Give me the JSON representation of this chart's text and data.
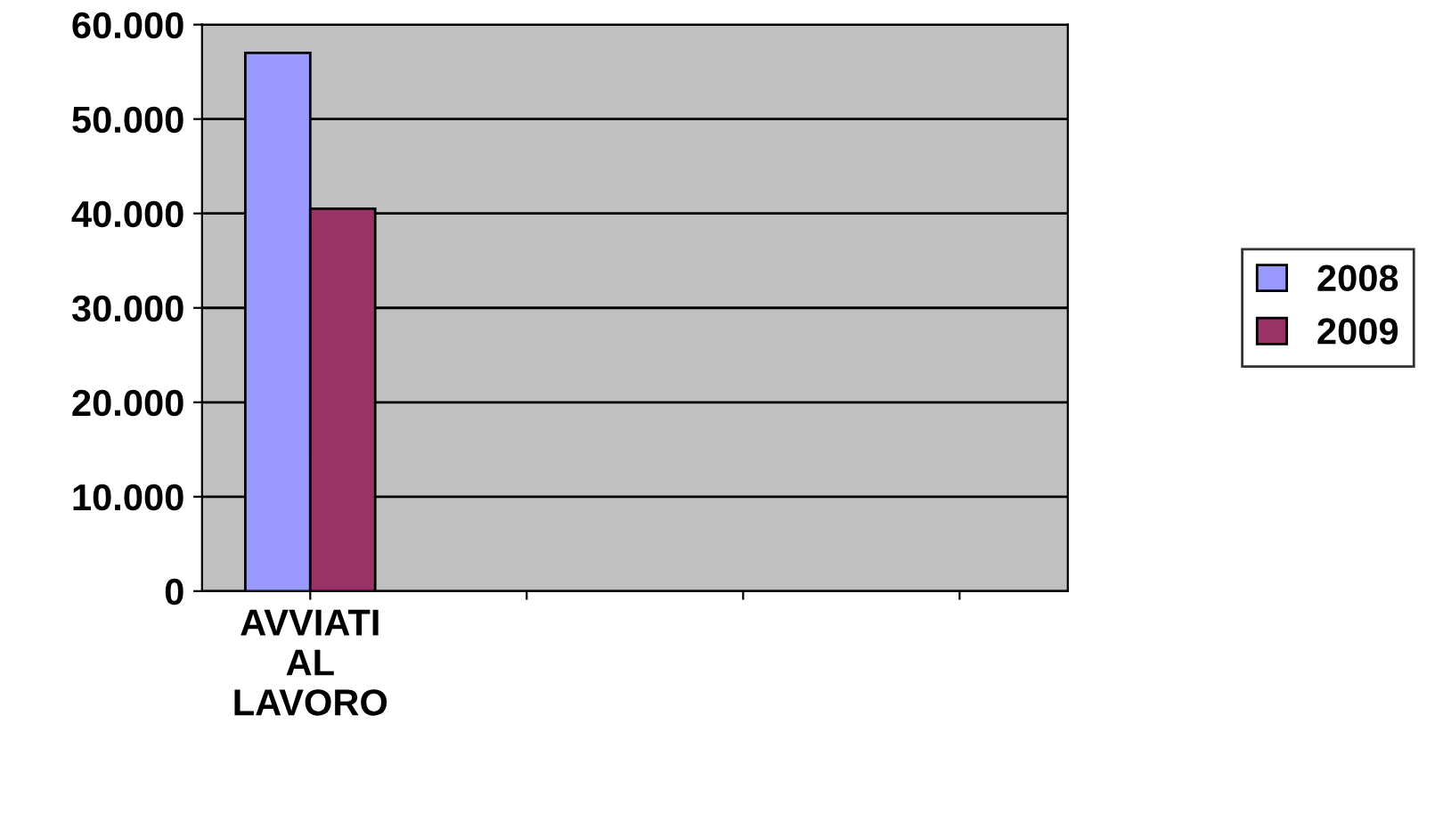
{
  "chart_data": {
    "type": "bar",
    "categories": [
      "AVVIATI AL LAVORO",
      null,
      null,
      null
    ],
    "series": [
      {
        "name": "2008",
        "color": "#9999ff",
        "values": [
          57000,
          null,
          null,
          null
        ]
      },
      {
        "name": "2009",
        "color": "#993366",
        "values": [
          40500,
          null,
          null,
          null
        ]
      }
    ],
    "ylim": [
      0,
      60000
    ],
    "yticks": [
      0,
      {
        "value": 10000,
        "label": "10.000"
      },
      {
        "value": 20000,
        "label": "20.000"
      },
      {
        "value": 30000,
        "label": "30.000"
      },
      {
        "value": 40000,
        "label": "40.000"
      },
      {
        "value": 50000,
        "label": "50.000"
      },
      {
        "value": 60000,
        "label": "60.000"
      }
    ],
    "grid": "y",
    "legend": "right"
  }
}
